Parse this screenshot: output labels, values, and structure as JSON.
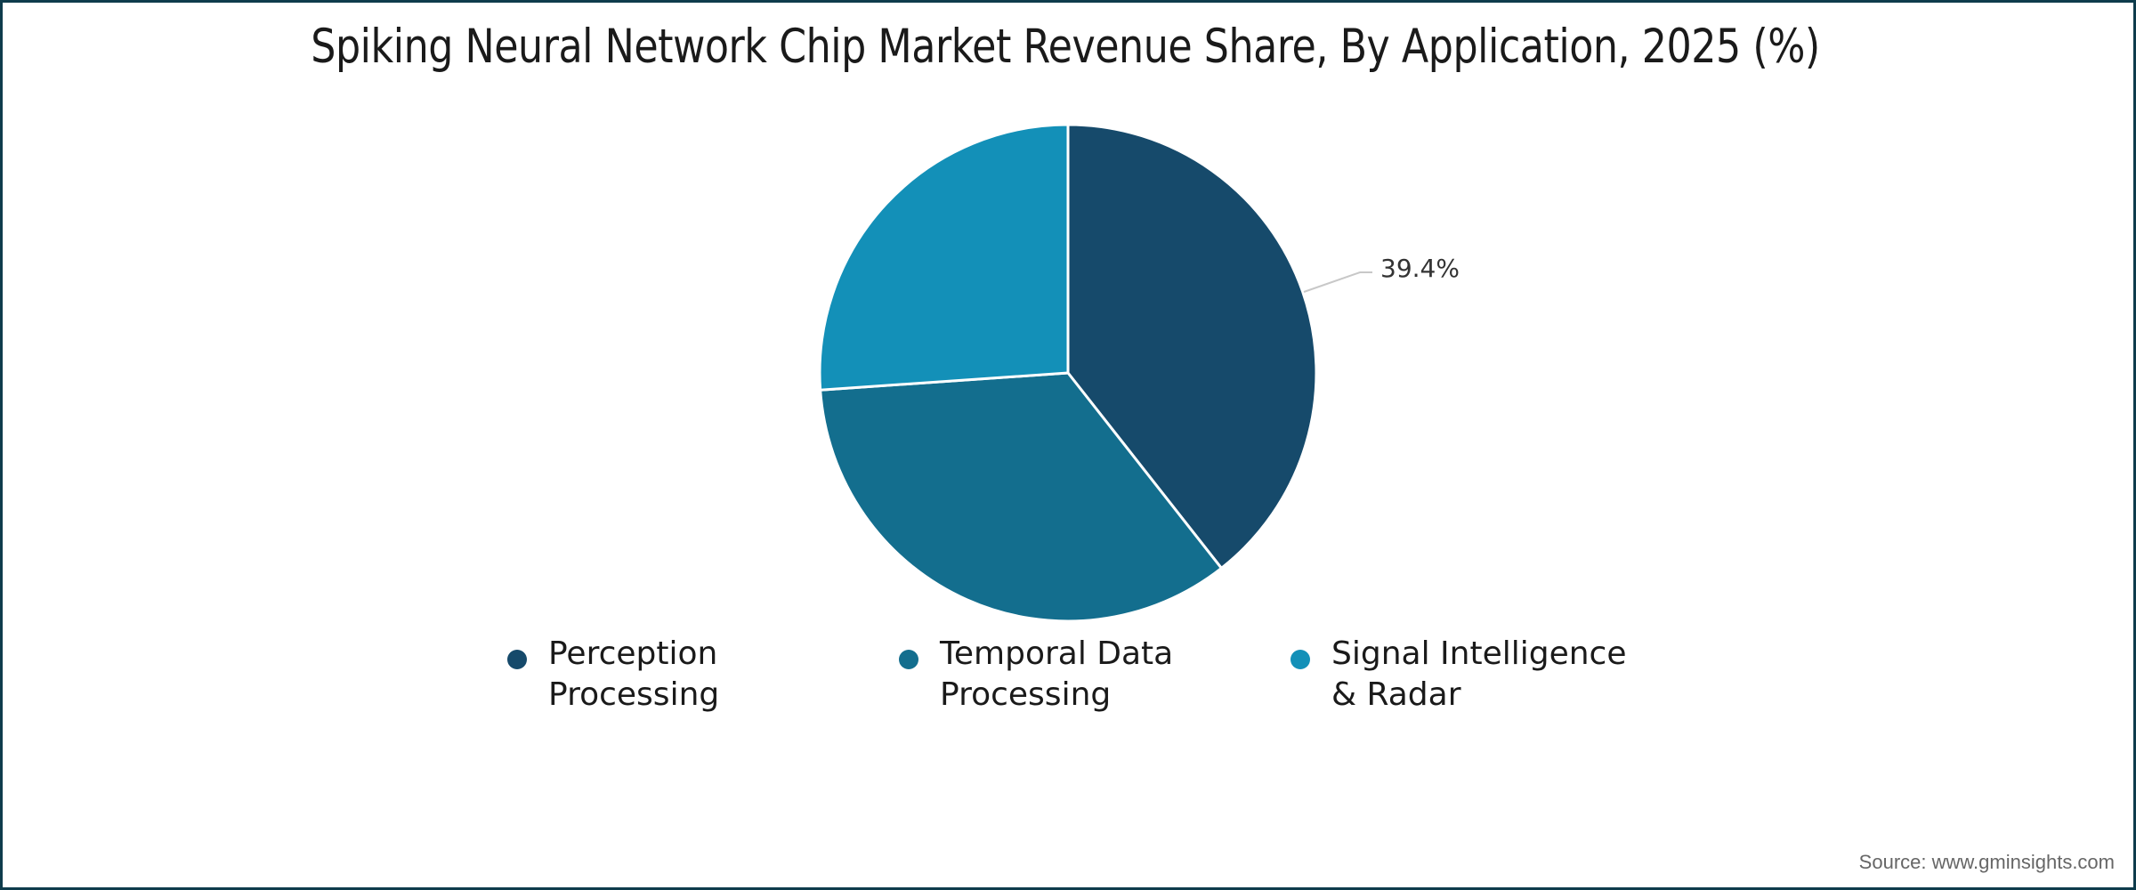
{
  "chart_data": {
    "type": "pie",
    "title": "Spiking Neural Network Chip Market Revenue Share, By Application, 2025 (%)",
    "categories": [
      "Perception Processing",
      "Temporal Data Processing",
      "Signal Intelligence & Radar"
    ],
    "values": [
      39.4,
      34.5,
      26.1
    ],
    "colors": [
      "#164a6b",
      "#136e8e",
      "#1390b8"
    ],
    "data_labels": [
      "39.4%",
      "",
      ""
    ],
    "legend_position": "bottom",
    "source": "Source: www.gminsights.com"
  },
  "title": "Spiking Neural Network Chip Market Revenue Share, By Application, 2025 (%)",
  "data_label": "39.4%",
  "legend": [
    {
      "label": "Perception Processing",
      "color": "#164a6b"
    },
    {
      "label": "Temporal Data Processing",
      "color": "#136e8e"
    },
    {
      "label": "Signal Intelligence & Radar",
      "color": "#1390b8"
    }
  ],
  "source": "Source: www.gminsights.com"
}
